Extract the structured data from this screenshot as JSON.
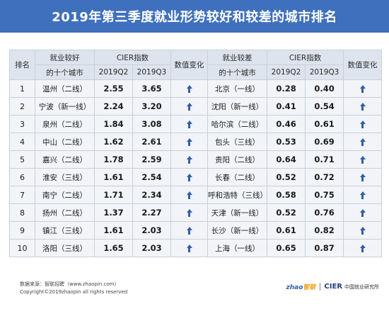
{
  "title": "2019年第三季度就业形势较好和较差的城市排名",
  "header": {
    "rank": "排名",
    "good_cities_line1": "就业较好",
    "good_cities_line2": "的十个城市",
    "cier_index": "CIER指数",
    "change": "数值变化",
    "q2": "2019Q2",
    "q3": "2019Q3",
    "bad_cities_line1": "就业较差",
    "bad_cities_line2": "的十个城市"
  },
  "rows": [
    {
      "rank": "1",
      "good_city": "温州（二线）",
      "good_q2": "2.55",
      "good_q3": "3.65",
      "bad_city": "北京（一线）",
      "bad_q2": "0.28",
      "bad_q3": "0.40"
    },
    {
      "rank": "2",
      "good_city": "宁波（新一线）",
      "good_q2": "2.24",
      "good_q3": "3.20",
      "bad_city": "沈阳（新一线）",
      "bad_q2": "0.41",
      "bad_q3": "0.54"
    },
    {
      "rank": "3",
      "good_city": "泉州（二线）",
      "good_q2": "1.84",
      "good_q3": "3.08",
      "bad_city": "哈尔滨（二线）",
      "bad_q2": "0.46",
      "bad_q3": "0.61"
    },
    {
      "rank": "4",
      "good_city": "中山（二线）",
      "good_q2": "1.62",
      "good_q3": "2.61",
      "bad_city": "包头（三线）",
      "bad_q2": "0.53",
      "bad_q3": "0.69"
    },
    {
      "rank": "5",
      "good_city": "嘉兴（二线）",
      "good_q2": "1.78",
      "good_q3": "2.59",
      "bad_city": "贵阳（二线）",
      "bad_q2": "0.64",
      "bad_q3": "0.71"
    },
    {
      "rank": "6",
      "good_city": "淮安（三线）",
      "good_q2": "1.61",
      "good_q3": "2.54",
      "bad_city": "长春（二线）",
      "bad_q2": "0.52",
      "bad_q3": "0.72"
    },
    {
      "rank": "7",
      "good_city": "南宁（二线）",
      "good_q2": "1.71",
      "good_q3": "2.34",
      "bad_city": "呼和浩特（三线）",
      "bad_q2": "0.58",
      "bad_q3": "0.75"
    },
    {
      "rank": "8",
      "good_city": "扬州（二线）",
      "good_q2": "1.37",
      "good_q3": "2.27",
      "bad_city": "天津（新一线）",
      "bad_q2": "0.52",
      "bad_q3": "0.76"
    },
    {
      "rank": "9",
      "good_city": "镇江（三线）",
      "good_q2": "1.61",
      "good_q3": "2.03",
      "bad_city": "长沙（新一线）",
      "bad_q2": "0.61",
      "bad_q3": "0.82"
    },
    {
      "rank": "10",
      "good_city": "洛阳（三线）",
      "good_q2": "1.65",
      "good_q3": "2.03",
      "bad_city": "上海（一线）",
      "bad_q2": "0.65",
      "bad_q3": "0.87"
    }
  ],
  "footer": {
    "source": "数据来源：智联招聘（www.zhaopin.com）",
    "copyright": "Copyright©2019zhaopin all rights reserved"
  },
  "logos": {
    "zhaopin_a": "zhao",
    "zhaopin_b": "智联",
    "cier": "CIER",
    "cier_cn": "中国就业研究所"
  },
  "colors": {
    "title_bg": "#3f70bd",
    "arrow": "#2f5fa8",
    "header_bg": "#dde4ee",
    "cell_bg": "#f2f4f8"
  },
  "icons": {
    "change": "up-arrow-icon"
  }
}
